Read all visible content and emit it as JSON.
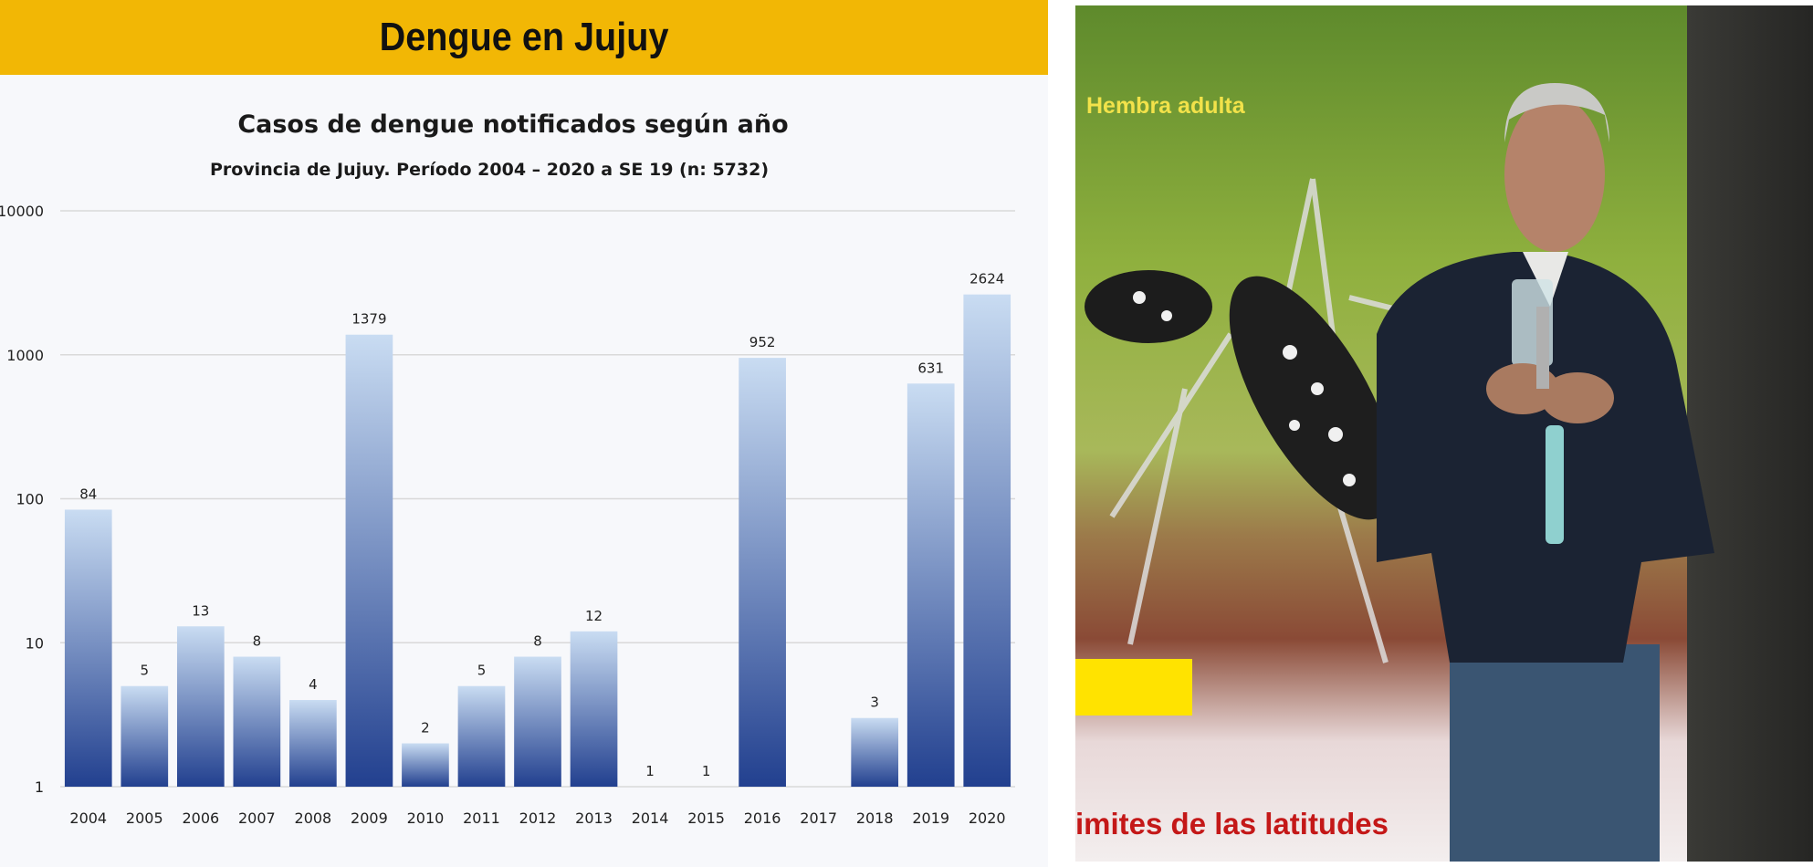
{
  "slide": {
    "banner_title": "Dengue en Jujuy"
  },
  "chart_data": {
    "type": "bar",
    "title": "Casos de dengue notificados según año",
    "subtitle": "Provincia de Jujuy. Período 2004 – 2020 a SE 19 (n: 5732)",
    "y_scale": "log",
    "ylim": [
      1,
      10000
    ],
    "yticks": [
      "1",
      "10",
      "100",
      "1000",
      "10000"
    ],
    "grid": true,
    "categories": [
      "2004",
      "2005",
      "2006",
      "2007",
      "2008",
      "2009",
      "2010",
      "2011",
      "2012",
      "2013",
      "2014",
      "2015",
      "2016",
      "2017",
      "2018",
      "2019",
      "2020"
    ],
    "values": [
      84,
      5,
      13,
      8,
      4,
      1379,
      2,
      5,
      8,
      12,
      1,
      1,
      952,
      null,
      3,
      631,
      2624
    ],
    "data_labels": [
      "84",
      "5",
      "13",
      "8",
      "4",
      "1379",
      "2",
      "5",
      "8",
      "12",
      "1",
      "1",
      "952",
      "",
      "3",
      "631",
      "2624"
    ],
    "colors": {
      "bar_top": "#c9dcf2",
      "bar_bottom": "#22408f",
      "grid": "#d9d9d9"
    }
  },
  "video": {
    "screen_label": "Hembra adulta",
    "screen_bottom_text": "imites de las latitudes"
  }
}
